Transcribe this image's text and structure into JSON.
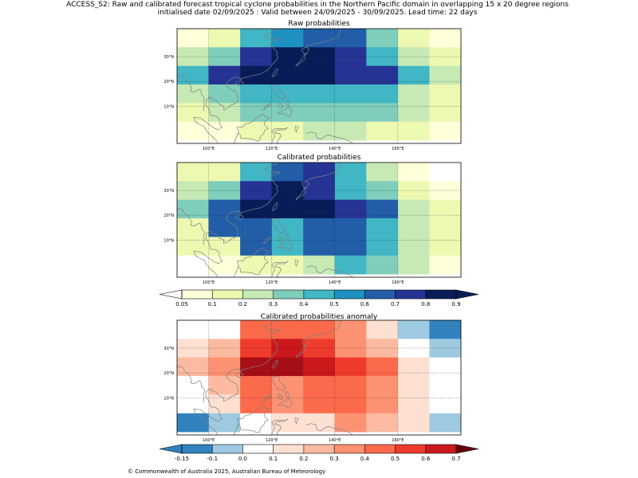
{
  "header": {
    "line1": "ACCESS_S2: Raw and calibrated forecast tropical cyclone probabilities in the Northern Pacific domain in overlapping 15 x 20 degree regions",
    "line2": "initialised date 02/09/2025 :  Valid between 24/09/2025 - 30/09/2025. Lead time: 22 days"
  },
  "footer": {
    "copyright": "© Commonwealth of Australia 2025, Australian Bureau of Meteorology"
  },
  "chart_data": [
    {
      "type": "heatmap",
      "title": "Raw probabilities",
      "x_tick_labels": [
        "100°E",
        "120°E",
        "140°E",
        "160°E"
      ],
      "y_tick_labels": [
        "10°N",
        "20°N",
        "30°N"
      ],
      "x_cell_centers_lon": [
        95,
        105,
        115,
        125,
        135,
        145,
        155,
        165,
        175
      ],
      "y_cell_centers_lat": [
        37.5,
        30,
        22.5,
        15,
        7.5,
        0
      ],
      "grid": true,
      "value_encoding": "colour class index on the probability colour scale below",
      "cells": [
        [
          1,
          2,
          5,
          6,
          7,
          7,
          4,
          2,
          1
        ],
        [
          3,
          4,
          8,
          9,
          9,
          8,
          5,
          3,
          2
        ],
        [
          5,
          8,
          10,
          10,
          9,
          8,
          8,
          5,
          3
        ],
        [
          3,
          4,
          5,
          5,
          5,
          5,
          5,
          3,
          2
        ],
        [
          2,
          3,
          4,
          4,
          4,
          4,
          4,
          3,
          2
        ],
        [
          1,
          1,
          2,
          2,
          3,
          3,
          2,
          2,
          1
        ]
      ]
    },
    {
      "type": "heatmap",
      "title": "Calibrated probabilities",
      "x_tick_labels": [
        "100°E",
        "120°E",
        "140°E",
        "160°E"
      ],
      "y_tick_labels": [
        "10°N",
        "20°N",
        "30°N"
      ],
      "x_cell_centers_lon": [
        95,
        105,
        115,
        125,
        135,
        145,
        155,
        165,
        175
      ],
      "y_cell_centers_lat": [
        37.5,
        30,
        22.5,
        15,
        7.5,
        0
      ],
      "grid": true,
      "value_encoding": "colour class index on the probability colour scale below",
      "cells": [
        [
          2,
          2,
          5,
          7,
          8,
          5,
          3,
          1,
          0
        ],
        [
          3,
          4,
          8,
          9,
          8,
          5,
          4,
          2,
          1
        ],
        [
          4,
          7,
          10,
          10,
          9,
          8,
          7,
          3,
          2
        ],
        [
          2,
          7,
          7,
          5,
          7,
          7,
          5,
          3,
          2
        ],
        [
          2,
          2,
          7,
          5,
          7,
          7,
          5,
          3,
          2
        ],
        [
          0,
          1,
          2,
          2,
          3,
          5,
          4,
          3,
          1
        ]
      ]
    },
    {
      "type": "heatmap",
      "title": "Calibrated probabilities anomaly",
      "x_tick_labels": [
        "100°E",
        "120°E",
        "140°E",
        "160°E"
      ],
      "y_tick_labels": [
        "10°N",
        "20°N",
        "30°N"
      ],
      "x_cell_centers_lon": [
        95,
        105,
        115,
        125,
        135,
        145,
        155,
        165,
        175
      ],
      "y_cell_centers_lat": [
        37.5,
        30,
        22.5,
        15,
        7.5,
        0
      ],
      "grid": true,
      "value_encoding": "colour class index on the anomaly colour scale below",
      "cells": [
        [
          3,
          3,
          7,
          7,
          7,
          6,
          4,
          2,
          1
        ],
        [
          4,
          5,
          8,
          9,
          8,
          6,
          5,
          3,
          2
        ],
        [
          5,
          6,
          10,
          10,
          9,
          8,
          7,
          4,
          3
        ],
        [
          3,
          5,
          7,
          6,
          7,
          7,
          6,
          4,
          3
        ],
        [
          3,
          4,
          7,
          6,
          7,
          7,
          6,
          4,
          3
        ],
        [
          1,
          2,
          3,
          4,
          4,
          6,
          5,
          4,
          2
        ]
      ]
    }
  ],
  "colorbars": {
    "probability": {
      "tick_labels": [
        "0.05",
        "0.1",
        "0.2",
        "0.3",
        "0.4",
        "0.5",
        "0.6",
        "0.7",
        "0.8",
        "0.9"
      ],
      "colors": [
        "#ffffff",
        "#ffffd9",
        "#edf8b1",
        "#c7e9b4",
        "#7fcdbb",
        "#41b6c4",
        "#1d91c0",
        "#225ea8",
        "#253494",
        "#081d58",
        "#081d58"
      ]
    },
    "anomaly": {
      "tick_labels": [
        "-0.15",
        "-0.1",
        "0.0",
        "0.1",
        "0.2",
        "0.3",
        "0.4",
        "0.5",
        "0.6",
        "0.7"
      ],
      "colors": [
        "#3182bd",
        "#3182bd",
        "#9ecae1",
        "#ffffff",
        "#fee0d2",
        "#fcbba1",
        "#fc9272",
        "#fb6a4a",
        "#ef3b2c",
        "#cb181d",
        "#a50f15",
        "#67000d"
      ]
    }
  }
}
